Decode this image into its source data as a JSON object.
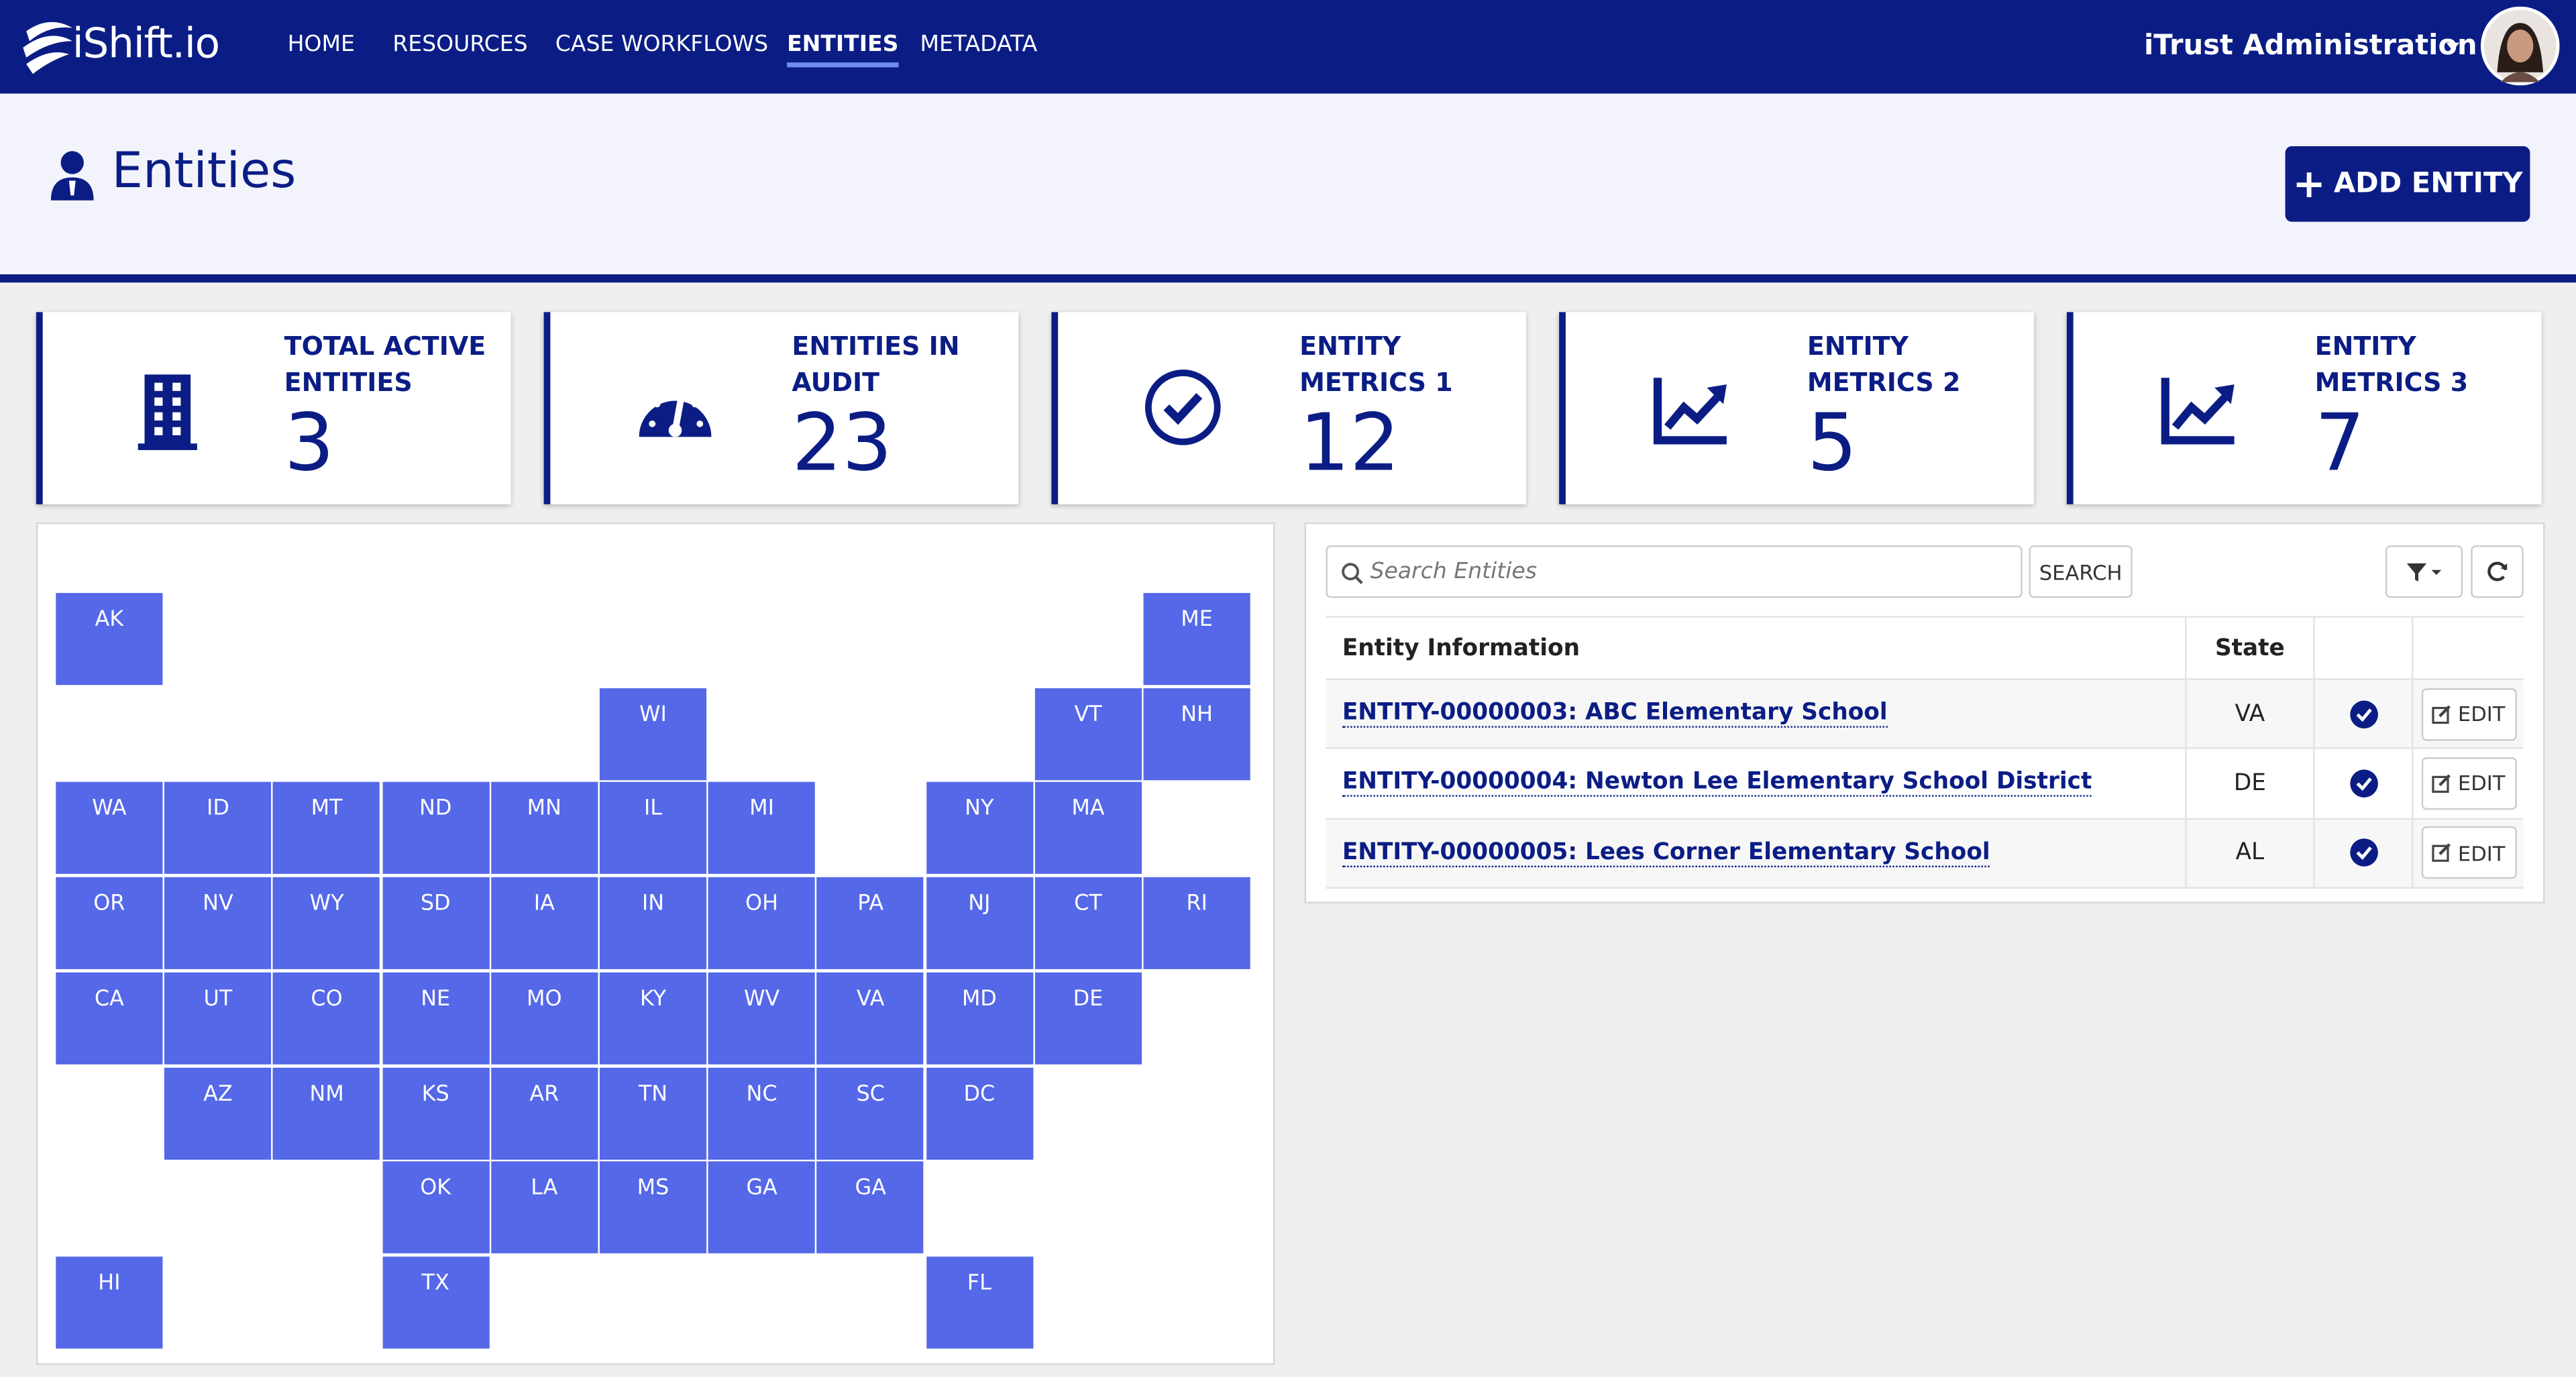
{
  "nav": {
    "brand": "iShift.io",
    "items": [
      "HOME",
      "RESOURCES",
      "CASE WORKFLOWS",
      "ENTITIES",
      "METADATA"
    ],
    "user": "iTrust Administration"
  },
  "header": {
    "title": "Entities",
    "button": "ADD ENTITY"
  },
  "metrics": [
    {
      "label": "TOTAL ACTIVE ENTITIES",
      "value": 3
    },
    {
      "label": "ENTITIES IN AUDIT",
      "value": 23
    },
    {
      "label": "ENTITY METRICS 1",
      "value": 12
    },
    {
      "label": "ENTITY METRICS 2",
      "value": 5
    },
    {
      "label": "ENTITY METRICS 3",
      "value": 7
    }
  ],
  "map": {
    "states": [
      "AK",
      "ME",
      "WI",
      "VT",
      "NH",
      "WA",
      "ID",
      "MT",
      "ND",
      "MN",
      "IL",
      "MI",
      "NY",
      "MA",
      "OR",
      "NV",
      "WY",
      "SD",
      "IA",
      "IN",
      "OH",
      "PA",
      "NJ",
      "CT",
      "RI",
      "CA",
      "UT",
      "CO",
      "NE",
      "MO",
      "KY",
      "WV",
      "VA",
      "MD",
      "DE",
      "AZ",
      "NM",
      "KS",
      "AR",
      "TN",
      "NC",
      "SC",
      "DC",
      "OK",
      "LA",
      "MS",
      "GA",
      "GA",
      "HI",
      "TX",
      "FL"
    ]
  },
  "table": {
    "search_placeholder": "Search Entities",
    "search_button": "SEARCH",
    "columns": [
      "Entity Information",
      "State"
    ],
    "rows": [
      {
        "entity": "ENTITY-00000003: ABC Elementary School",
        "state": "VA"
      },
      {
        "entity": "ENTITY-00000004: Newton Lee Elementary School District",
        "state": "DE"
      },
      {
        "entity": "ENTITY-00000005: Lees Corner Elementary School",
        "state": "AL"
      }
    ],
    "edit_button": "EDIT"
  }
}
